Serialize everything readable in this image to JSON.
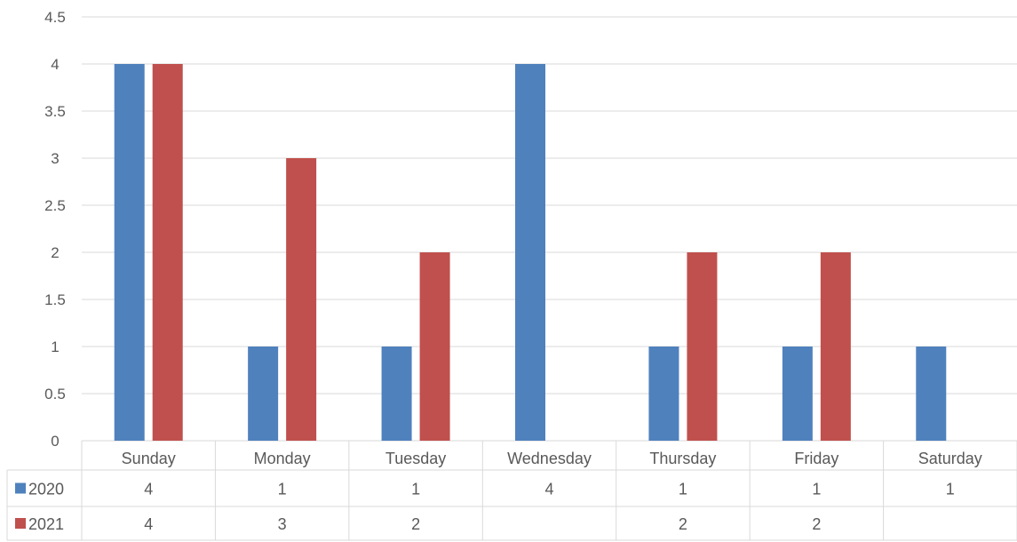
{
  "chart_data": {
    "type": "bar",
    "title": "",
    "xlabel": "",
    "ylabel": "",
    "categories": [
      "Sunday",
      "Monday",
      "Tuesday",
      "Wednesday",
      "Thursday",
      "Friday",
      "Saturday"
    ],
    "series": [
      {
        "name": "2020",
        "color": "#4F81BD",
        "values": [
          4,
          1,
          1,
          4,
          1,
          1,
          1
        ],
        "table_values": [
          "4",
          "1",
          "1",
          "4",
          "1",
          "1",
          "1"
        ]
      },
      {
        "name": "2021",
        "color": "#C0504D",
        "values": [
          4,
          3,
          2,
          null,
          2,
          2,
          null
        ],
        "table_values": [
          "4",
          "3",
          "2",
          "",
          "2",
          "2",
          ""
        ]
      }
    ],
    "ylim": [
      0,
      4.5
    ],
    "yticks": [
      "0",
      "0.5",
      "1",
      "1.5",
      "2",
      "2.5",
      "3",
      "3.5",
      "4",
      "4.5"
    ],
    "grid": true,
    "legend": "data-table",
    "gridline_color": "#D9D9D9",
    "axis_text_color": "#595959"
  }
}
